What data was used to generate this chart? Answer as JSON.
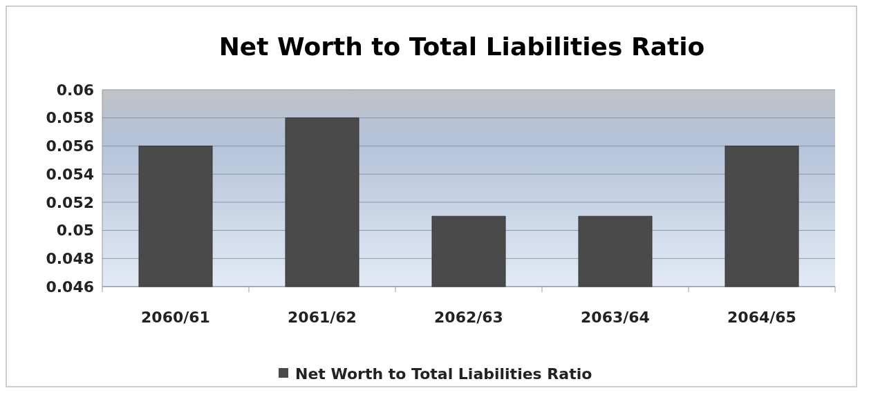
{
  "chart_data": {
    "type": "bar",
    "title": "Net Worth to Total Liabilities Ratio",
    "categories": [
      "2060/61",
      "2061/62",
      "2062/63",
      "2063/64",
      "2064/65"
    ],
    "series": [
      {
        "name": "Net Worth to Total Liabilities Ratio",
        "color": "#4a4a4a",
        "values": [
          0.056,
          0.058,
          0.051,
          0.051,
          0.056
        ]
      }
    ],
    "ylim": [
      0.046,
      0.06
    ],
    "yticks": [
      0.046,
      0.048,
      0.05,
      0.052,
      0.054,
      0.056,
      0.058,
      0.06
    ],
    "grid": "y",
    "legend": "bottom"
  }
}
